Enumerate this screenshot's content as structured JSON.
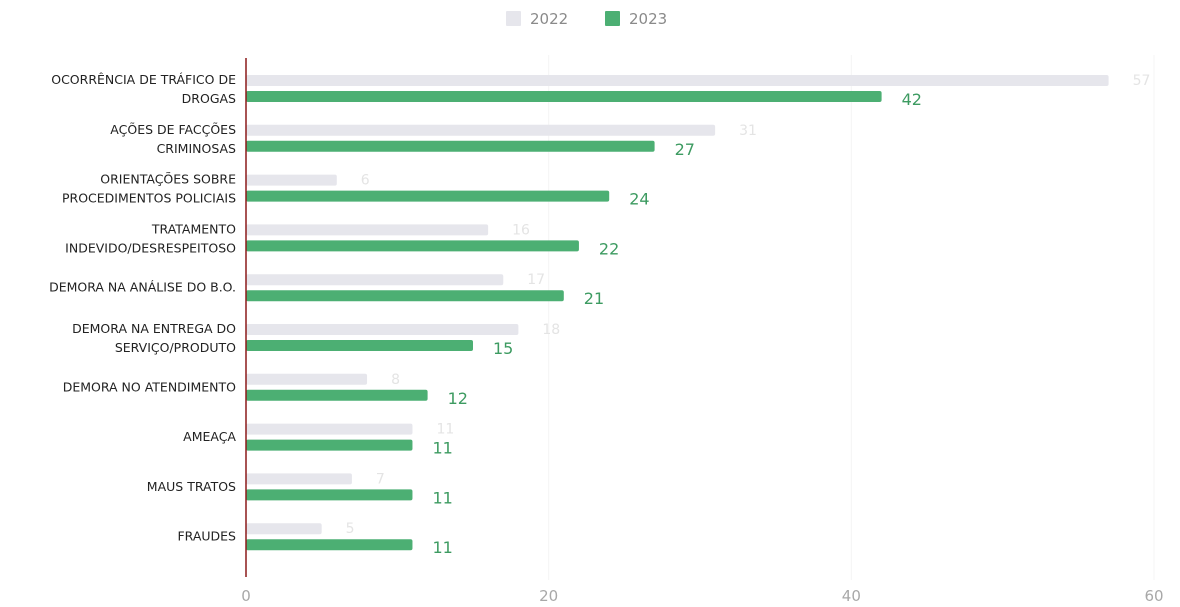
{
  "chart_data": {
    "type": "bar",
    "orientation": "horizontal",
    "categories": [
      [
        "OCORRÊNCIA DE TRÁFICO DE",
        "DROGAS"
      ],
      [
        "AÇÕES DE FACÇÕES",
        "CRIMINOSAS"
      ],
      [
        "ORIENTAÇÕES SOBRE",
        "PROCEDIMENTOS POLICIAIS"
      ],
      [
        "TRATAMENTO",
        "INDEVIDO/DESRESPEITOSO"
      ],
      [
        "DEMORA NA ANÁLISE DO B.O."
      ],
      [
        "DEMORA NA ENTREGA DO",
        "SERVIÇO/PRODUTO"
      ],
      [
        "DEMORA NO ATENDIMENTO"
      ],
      [
        "AMEAÇA"
      ],
      [
        "MAUS TRATOS"
      ],
      [
        "FRAUDES"
      ]
    ],
    "series": [
      {
        "name": "2022",
        "color": "#e6e6ec",
        "values": [
          57,
          31,
          6,
          16,
          17,
          18,
          8,
          11,
          7,
          5
        ]
      },
      {
        "name": "2023",
        "color": "#4caf73",
        "values": [
          42,
          27,
          24,
          22,
          21,
          15,
          12,
          11,
          11,
          11
        ]
      }
    ],
    "xlim": [
      0,
      60
    ],
    "xticks": [
      0,
      20,
      40,
      60
    ],
    "grid": true,
    "legend_position": "top-center",
    "title": "",
    "xlabel": "",
    "ylabel": ""
  }
}
